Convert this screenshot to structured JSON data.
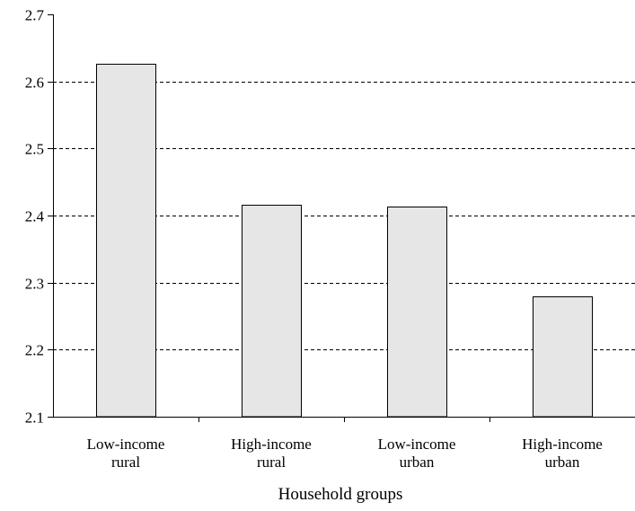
{
  "chart_data": {
    "type": "bar",
    "title": "",
    "xlabel": "Household groups",
    "ylabel": "",
    "categories": [
      [
        "Low-income",
        "rural"
      ],
      [
        "High-income",
        "rural"
      ],
      [
        "Low-income",
        "urban"
      ],
      [
        "High-income",
        "urban"
      ]
    ],
    "values": [
      2.627,
      2.416,
      2.413,
      2.279
    ],
    "ylim": [
      2.1,
      2.7
    ],
    "yticks": [
      "2.1",
      "2.2",
      "2.3",
      "2.4",
      "2.5",
      "2.6",
      "2.7"
    ],
    "grid": true,
    "grid_style": "dashed",
    "legend": "none",
    "colors": {
      "bar_fill": "#e6e6e6",
      "bar_stroke": "#000000",
      "axis": "#000000",
      "grid": "#000000"
    }
  }
}
